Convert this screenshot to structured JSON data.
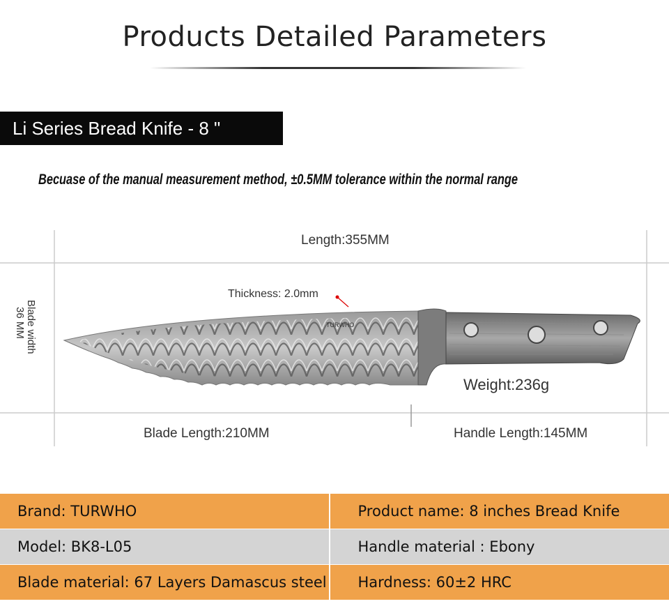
{
  "header": {
    "title": "Products Detailed Parameters",
    "series_tag": "Li Series Bread Knife - 8 \"",
    "note": "Becuase of the manual measurement method, ±0.5MM tolerance within the normal range"
  },
  "diagram": {
    "length_label": "Length:355MM",
    "thickness_label": "Thickness: 2.0mm",
    "blade_width_line1": "Blade width",
    "blade_width_line2": "36 MM",
    "weight_label": "Weight:236g",
    "blade_length_label": "Blade Length:210MM",
    "handle_length_label": "Handle Length:145MM",
    "brand_mark": "TURWHO",
    "knife_icon": "knife-illustration"
  },
  "specs": [
    [
      "Brand: TURWHO",
      "Product name: 8 inches Bread Knife"
    ],
    [
      "Model: BK8-L05",
      "Handle material : Ebony"
    ],
    [
      "Blade material: 67 Layers Damascus steel",
      "Hardness:  60±2 HRC"
    ]
  ],
  "colors": {
    "accent_orange": "#f0a24a",
    "row_gray": "#d4d4d4",
    "tag_black": "#0a0a0a"
  }
}
